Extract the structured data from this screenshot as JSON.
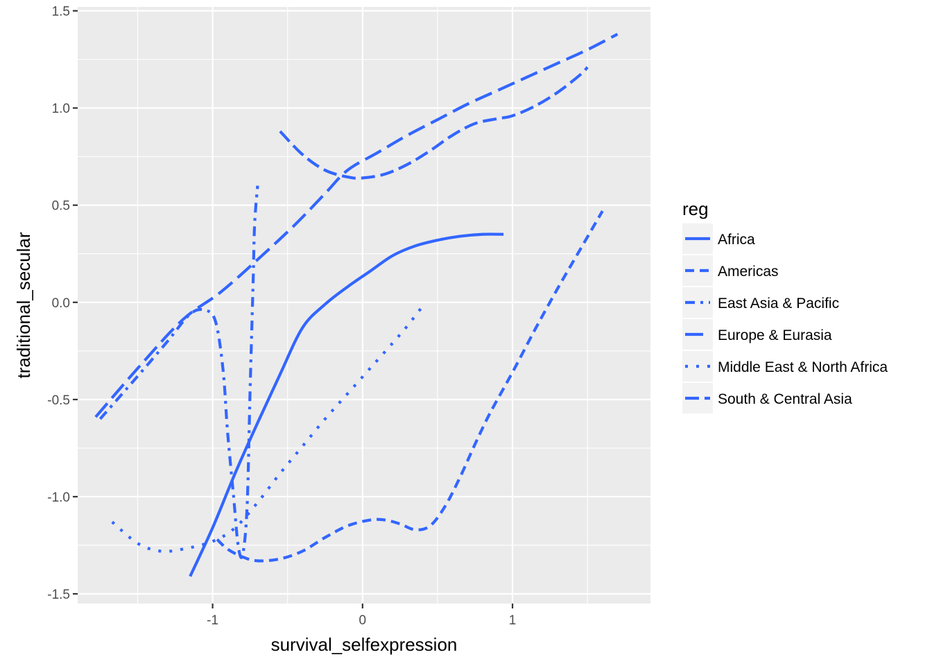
{
  "chart_data": {
    "type": "line",
    "title": "",
    "xlabel": "survival_selfexpression",
    "ylabel": "traditional_secular",
    "xlim": [
      -1.9,
      1.92
    ],
    "ylim": [
      -1.55,
      1.52
    ],
    "x_ticks": [
      {
        "value": -1,
        "label": "-1"
      },
      {
        "value": 0,
        "label": "0"
      },
      {
        "value": 1,
        "label": "1"
      }
    ],
    "x_minor_ticks": [
      -1.5,
      -0.5,
      0.5,
      1.5
    ],
    "y_ticks": [
      {
        "value": -1.5,
        "label": "-1.5"
      },
      {
        "value": -1.0,
        "label": "-1.0"
      },
      {
        "value": -0.5,
        "label": "-0.5"
      },
      {
        "value": 0.0,
        "label": "0.0"
      },
      {
        "value": 0.5,
        "label": "0.5"
      },
      {
        "value": 1.0,
        "label": "1.0"
      },
      {
        "value": 1.5,
        "label": "1.5"
      }
    ],
    "y_minor_ticks": [
      -1.25,
      -0.75,
      -0.25,
      0.25,
      0.75,
      1.25
    ],
    "grid": true,
    "legend": {
      "title": "reg",
      "position": "right"
    },
    "line_color": "#3366ff",
    "panel_color": "#ebebeb",
    "series": [
      {
        "name": "Africa",
        "dash": "solid",
        "points": [
          [
            -1.15,
            -1.41
          ],
          [
            -1.0,
            -1.16
          ],
          [
            -0.85,
            -0.88
          ],
          [
            -0.7,
            -0.62
          ],
          [
            -0.55,
            -0.37
          ],
          [
            -0.4,
            -0.13
          ],
          [
            -0.25,
            -0.01
          ],
          [
            -0.1,
            0.08
          ],
          [
            0.05,
            0.16
          ],
          [
            0.2,
            0.24
          ],
          [
            0.35,
            0.29
          ],
          [
            0.5,
            0.32
          ],
          [
            0.65,
            0.34
          ],
          [
            0.8,
            0.35
          ],
          [
            0.94,
            0.35
          ]
        ]
      },
      {
        "name": "Americas",
        "dash": "short-dash",
        "points": [
          [
            -0.97,
            -1.22
          ],
          [
            -0.9,
            -1.27
          ],
          [
            -0.8,
            -1.31
          ],
          [
            -0.7,
            -1.33
          ],
          [
            -0.55,
            -1.32
          ],
          [
            -0.4,
            -1.28
          ],
          [
            -0.25,
            -1.21
          ],
          [
            -0.1,
            -1.15
          ],
          [
            0.05,
            -1.12
          ],
          [
            0.15,
            -1.12
          ],
          [
            0.25,
            -1.14
          ],
          [
            0.35,
            -1.17
          ],
          [
            0.45,
            -1.15
          ],
          [
            0.55,
            -1.05
          ],
          [
            0.65,
            -0.9
          ],
          [
            0.75,
            -0.73
          ],
          [
            0.85,
            -0.57
          ],
          [
            1.0,
            -0.36
          ],
          [
            1.15,
            -0.14
          ],
          [
            1.3,
            0.07
          ],
          [
            1.45,
            0.27
          ],
          [
            1.6,
            0.47
          ]
        ]
      },
      {
        "name": "East Asia & Pacific",
        "dash": "dash-dot",
        "points": [
          [
            -1.75,
            -0.6
          ],
          [
            -1.5,
            -0.38
          ],
          [
            -1.3,
            -0.2
          ],
          [
            -1.15,
            -0.06
          ],
          [
            -1.05,
            -0.04
          ],
          [
            -0.98,
            -0.1
          ],
          [
            -0.93,
            -0.35
          ],
          [
            -0.9,
            -0.67
          ],
          [
            -0.86,
            -1.0
          ],
          [
            -0.83,
            -1.25
          ],
          [
            -0.8,
            -1.3
          ],
          [
            -0.77,
            -1.05
          ],
          [
            -0.75,
            -0.45
          ],
          [
            -0.73,
            0.1
          ],
          [
            -0.72,
            0.4
          ],
          [
            -0.7,
            0.6
          ]
        ]
      },
      {
        "name": "Europe & Eurasia",
        "dash": "long-dash",
        "points": [
          [
            -1.78,
            -0.59
          ],
          [
            -1.5,
            -0.34
          ],
          [
            -1.2,
            -0.09
          ],
          [
            -0.95,
            0.05
          ],
          [
            -0.7,
            0.22
          ],
          [
            -0.45,
            0.4
          ],
          [
            -0.25,
            0.56
          ],
          [
            -0.1,
            0.68
          ],
          [
            0.1,
            0.77
          ],
          [
            0.3,
            0.86
          ],
          [
            0.5,
            0.94
          ],
          [
            0.7,
            1.02
          ],
          [
            0.9,
            1.09
          ],
          [
            1.1,
            1.16
          ],
          [
            1.3,
            1.23
          ],
          [
            1.5,
            1.3
          ],
          [
            1.7,
            1.38
          ]
        ]
      },
      {
        "name": "Middle East & North Africa",
        "dash": "dotted",
        "points": [
          [
            -1.67,
            -1.13
          ],
          [
            -1.5,
            -1.24
          ],
          [
            -1.35,
            -1.28
          ],
          [
            -1.2,
            -1.27
          ],
          [
            -1.0,
            -1.23
          ],
          [
            -0.85,
            -1.16
          ],
          [
            -0.7,
            -1.03
          ],
          [
            -0.55,
            -0.88
          ],
          [
            -0.4,
            -0.74
          ],
          [
            -0.25,
            -0.6
          ],
          [
            -0.1,
            -0.47
          ],
          [
            0.05,
            -0.34
          ],
          [
            0.2,
            -0.21
          ],
          [
            0.3,
            -0.12
          ],
          [
            0.42,
            0.0
          ]
        ]
      },
      {
        "name": "South & Central Asia",
        "dash": "medium-dash",
        "points": [
          [
            -0.55,
            0.88
          ],
          [
            -0.4,
            0.76
          ],
          [
            -0.25,
            0.68
          ],
          [
            -0.1,
            0.645
          ],
          [
            0.0,
            0.64
          ],
          [
            0.15,
            0.66
          ],
          [
            0.3,
            0.71
          ],
          [
            0.45,
            0.78
          ],
          [
            0.6,
            0.86
          ],
          [
            0.75,
            0.92
          ],
          [
            0.9,
            0.945
          ],
          [
            1.0,
            0.96
          ],
          [
            1.15,
            1.01
          ],
          [
            1.3,
            1.08
          ],
          [
            1.45,
            1.17
          ],
          [
            1.5,
            1.21
          ]
        ]
      }
    ]
  }
}
